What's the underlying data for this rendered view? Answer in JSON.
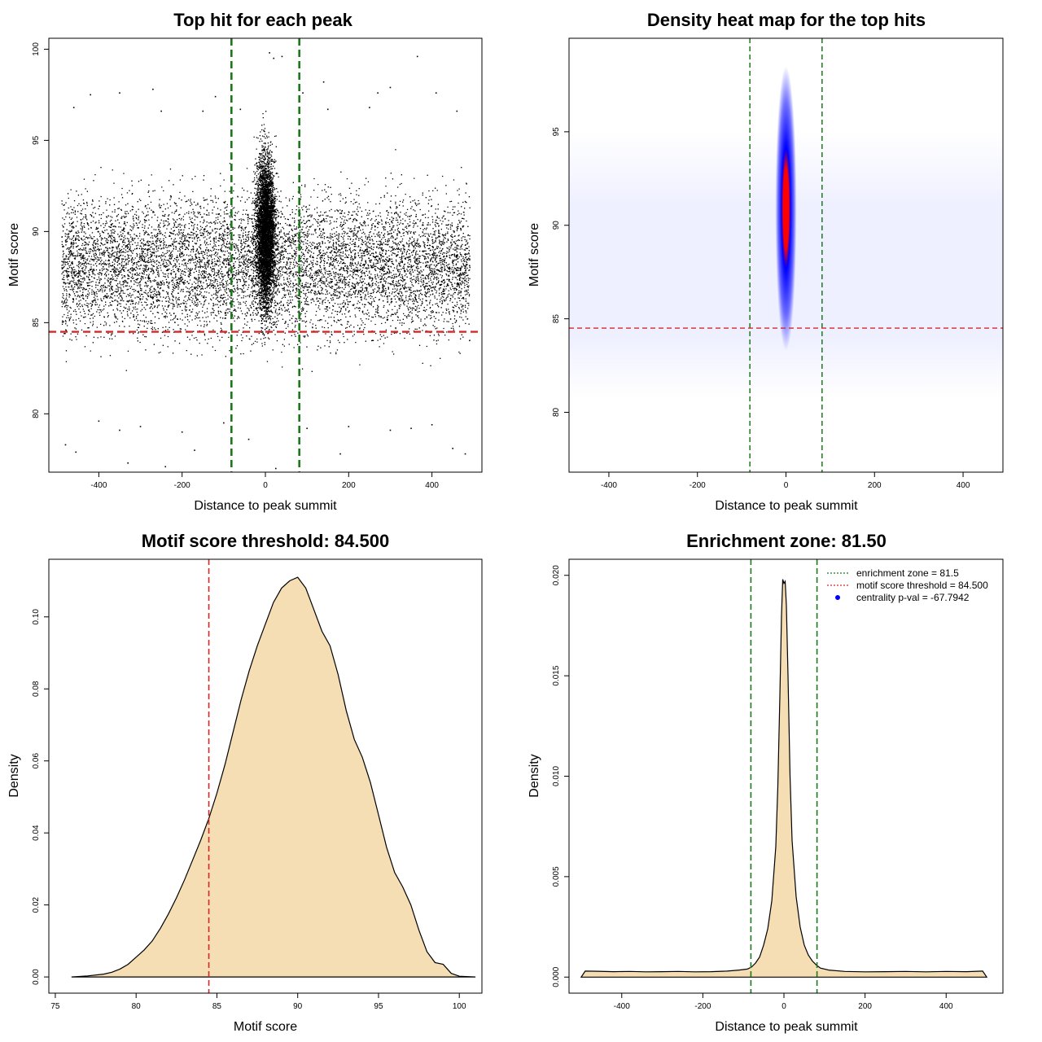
{
  "chart_data": [
    {
      "type": "scatter",
      "title": "Top hit for each peak",
      "xlabel": "Distance to peak summit",
      "ylabel": "Motif score",
      "xlim": [
        -520,
        520
      ],
      "ylim": [
        76.8,
        100.6
      ],
      "x_ticks": [
        -400,
        -200,
        0,
        200,
        400
      ],
      "y_ticks": [
        80,
        85,
        90,
        95,
        100
      ],
      "vlines": [
        -81.5,
        81.5
      ],
      "hline": 84.5,
      "colors": {
        "points": "#000000",
        "vlines": "#1a7a1a",
        "hline": "#d62728"
      },
      "points_description_x_range": [
        -490,
        490
      ],
      "points": [
        [
          -480,
          78.3
        ],
        [
          -455,
          77.9
        ],
        [
          -420,
          97.5
        ],
        [
          -350,
          97.6
        ],
        [
          -330,
          77.3
        ],
        [
          -270,
          97.8
        ],
        [
          -240,
          77.1
        ],
        [
          -170,
          78.0
        ],
        [
          -120,
          97.4
        ],
        [
          -60,
          96.7
        ],
        [
          -40,
          78.6
        ],
        [
          10,
          99.8
        ],
        [
          20,
          99.5
        ],
        [
          25,
          77.0
        ],
        [
          40,
          99.6
        ],
        [
          90,
          97.6
        ],
        [
          140,
          98.2
        ],
        [
          180,
          77.8
        ],
        [
          270,
          97.6
        ],
        [
          300,
          97.9
        ],
        [
          365,
          99.6
        ],
        [
          410,
          97.6
        ],
        [
          450,
          78.1
        ],
        [
          480,
          77.8
        ],
        [
          -300,
          79.3
        ],
        [
          -200,
          79.0
        ],
        [
          -100,
          79.5
        ],
        [
          100,
          79.2
        ],
        [
          200,
          79.3
        ],
        [
          300,
          79.1
        ],
        [
          400,
          79.4
        ],
        [
          -400,
          79.6
        ],
        [
          -460,
          96.8
        ],
        [
          460,
          96.6
        ],
        [
          -250,
          96.6
        ],
        [
          250,
          96.8
        ],
        [
          -150,
          96.6
        ],
        [
          150,
          96.7
        ],
        [
          -350,
          79.1
        ],
        [
          350,
          79.2
        ]
      ]
    },
    {
      "type": "heatmap",
      "title": "Density heat map for the top hits",
      "xlabel": "Distance to peak summit",
      "ylabel": "Motif score",
      "xlim": [
        -490,
        490
      ],
      "ylim": [
        76.8,
        100.0
      ],
      "x_ticks": [
        -400,
        -200,
        0,
        200,
        400
      ],
      "y_ticks": [
        80,
        85,
        90,
        95
      ],
      "vlines": [
        -81.5,
        81.5
      ],
      "hline": 84.5,
      "density_center": [
        0,
        90.9
      ],
      "colors": {
        "low": "#ffffff",
        "mid": "#0000ff",
        "high": "#ff0000",
        "vlines": "#1a7a1a",
        "hline": "#d62728"
      }
    },
    {
      "type": "area",
      "title": "Motif score threshold: 84.500",
      "xlabel": "Motif score",
      "ylabel": "Density",
      "xlim": [
        74.6,
        101.4
      ],
      "ylim": [
        -0.0045,
        0.116
      ],
      "x_ticks": [
        75,
        80,
        85,
        90,
        95,
        100
      ],
      "y_ticks": [
        0.0,
        0.02,
        0.04,
        0.06,
        0.08,
        0.1
      ],
      "y_tick_labels": [
        "0.00",
        "0.02",
        "0.04",
        "0.06",
        "0.08",
        "0.10"
      ],
      "vline": 84.5,
      "colors": {
        "fill": "#f5deb3",
        "line": "#000000",
        "vline": "#d62728"
      },
      "x": [
        76,
        77,
        78,
        78.5,
        79,
        79.5,
        80,
        80.5,
        81,
        81.5,
        82,
        82.5,
        83,
        83.5,
        84,
        84.5,
        85,
        85.5,
        86,
        86.5,
        87,
        87.5,
        88,
        88.5,
        89,
        89.5,
        90,
        90.5,
        91,
        91.5,
        92,
        92.5,
        93,
        93.5,
        94,
        94.5,
        95,
        95.5,
        96,
        96.5,
        97,
        97.5,
        98,
        98.5,
        99,
        99.5,
        100,
        101
      ],
      "y": [
        0.0,
        0.0003,
        0.0008,
        0.0013,
        0.0022,
        0.0035,
        0.0055,
        0.0075,
        0.01,
        0.0135,
        0.0175,
        0.022,
        0.027,
        0.0325,
        0.038,
        0.044,
        0.051,
        0.059,
        0.068,
        0.077,
        0.085,
        0.092,
        0.098,
        0.104,
        0.108,
        0.11,
        0.111,
        0.108,
        0.102,
        0.096,
        0.092,
        0.084,
        0.074,
        0.066,
        0.061,
        0.054,
        0.045,
        0.036,
        0.029,
        0.025,
        0.02,
        0.013,
        0.007,
        0.004,
        0.0035,
        0.001,
        0.0002,
        0.0
      ]
    },
    {
      "type": "area",
      "title": "Enrichment zone: 81.50",
      "xlabel": "Distance to peak summit",
      "ylabel": "Density",
      "xlim": [
        -530,
        540
      ],
      "ylim": [
        -0.0008,
        0.0208
      ],
      "x_ticks": [
        -400,
        -200,
        0,
        200,
        400
      ],
      "y_ticks": [
        0.0,
        0.005,
        0.01,
        0.015,
        0.02
      ],
      "y_tick_labels": [
        "0.000",
        "0.005",
        "0.010",
        "0.015",
        "0.020"
      ],
      "vlines": [
        -81.5,
        81.5
      ],
      "colors": {
        "fill": "#f5deb3",
        "line": "#000000",
        "vlines": "#1a7a1a",
        "threshold": "#d62728",
        "pval": "#0000ff"
      },
      "x": [
        -500,
        -490,
        -460,
        -420,
        -380,
        -340,
        -300,
        -260,
        -220,
        -180,
        -140,
        -110,
        -90,
        -80,
        -70,
        -60,
        -50,
        -40,
        -30,
        -20,
        -15,
        -10,
        -6,
        -3,
        0,
        3,
        6,
        10,
        15,
        20,
        30,
        40,
        50,
        60,
        70,
        80,
        90,
        110,
        150,
        200,
        250,
        300,
        350,
        400,
        450,
        490,
        500
      ],
      "y": [
        0.0,
        0.0003,
        0.00029,
        0.00027,
        0.00028,
        0.00026,
        0.00027,
        0.00028,
        0.00026,
        0.00027,
        0.0003,
        0.00035,
        0.0004,
        0.0005,
        0.0007,
        0.001,
        0.0016,
        0.0024,
        0.0038,
        0.0065,
        0.0095,
        0.014,
        0.018,
        0.0198,
        0.0196,
        0.0197,
        0.0185,
        0.015,
        0.01,
        0.0068,
        0.004,
        0.0025,
        0.0016,
        0.0011,
        0.0008,
        0.0006,
        0.00045,
        0.00035,
        0.00028,
        0.00026,
        0.00027,
        0.00028,
        0.00026,
        0.00028,
        0.00027,
        0.0003,
        0.0
      ],
      "legend": {
        "position": "top-right",
        "entries": [
          {
            "label": "enrichment zone = 81.5",
            "style": "dotted-line",
            "color": "#1a7a1a"
          },
          {
            "label": "motif score threshold = 84.500",
            "style": "dotted-line",
            "color": "#d62728"
          },
          {
            "label": "centrality p-val = -67.7942",
            "style": "point",
            "color": "#0000ff"
          }
        ]
      }
    }
  ]
}
